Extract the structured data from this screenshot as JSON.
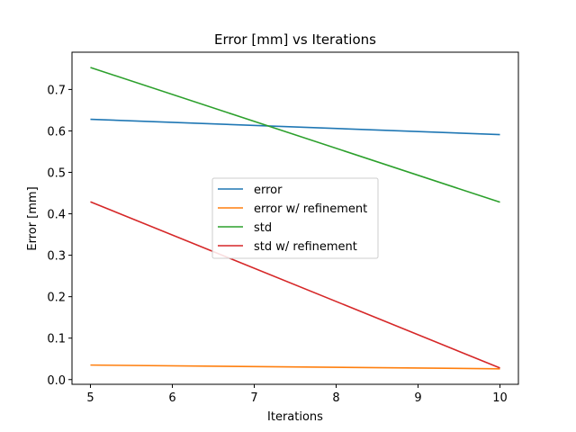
{
  "chart_data": {
    "type": "line",
    "title": "Error [mm] vs Iterations",
    "xlabel": "Iterations",
    "ylabel": "Error [mm]",
    "xlim": [
      4.775,
      10.225
    ],
    "ylim": [
      -0.0114,
      0.7899
    ],
    "xticks": [
      5,
      6,
      7,
      8,
      9,
      10
    ],
    "yticks": [
      0.0,
      0.1,
      0.2,
      0.3,
      0.4,
      0.5,
      0.6,
      0.7
    ],
    "grid": false,
    "legend_position": "center",
    "x": [
      5,
      10
    ],
    "series": [
      {
        "name": "error",
        "color": "#1f77b4",
        "values": [
          0.628,
          0.591
        ]
      },
      {
        "name": "error w/ refinement",
        "color": "#ff7f0e",
        "values": [
          0.035,
          0.026
        ]
      },
      {
        "name": "std",
        "color": "#2ca02c",
        "values": [
          0.753,
          0.428
        ]
      },
      {
        "name": "std w/ refinement",
        "color": "#d62728",
        "values": [
          0.429,
          0.028
        ]
      }
    ]
  }
}
